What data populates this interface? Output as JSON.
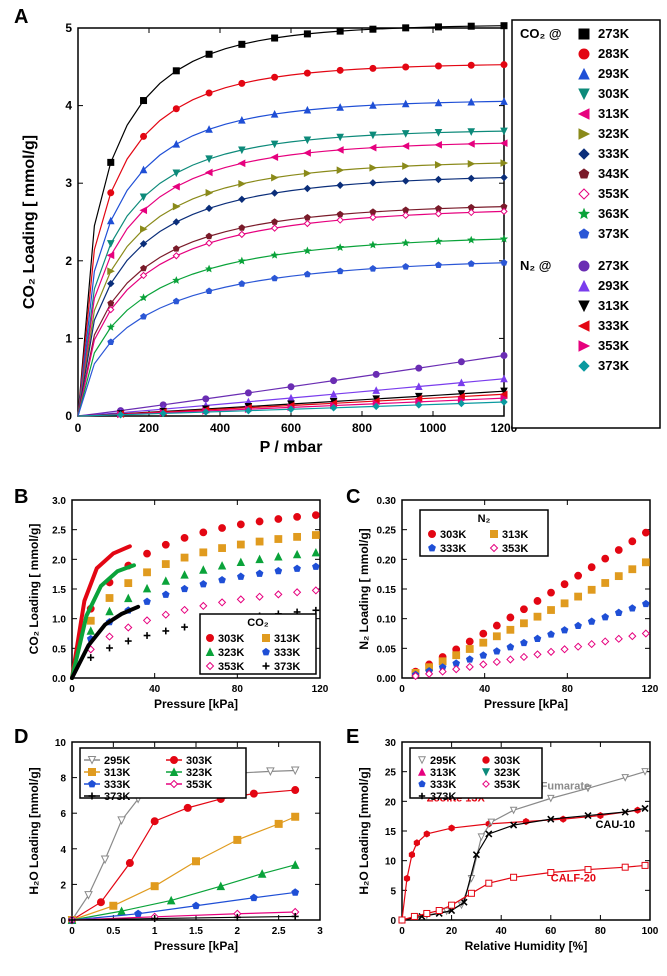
{
  "labels": {
    "A": "A",
    "B": "B",
    "C": "C",
    "D": "D",
    "E": "E",
    "A_x": "P / mbar",
    "A_y": "CO₂ Loading [ mmol/g]",
    "B_x": "Pressure [kPa]",
    "B_y": "CO₂ Loading [ mmol/g]",
    "C_x": "Pressure [kPa]",
    "C_y": "N₂ Loading [ mmol/g]",
    "D_x": "Pressure [kPa]",
    "D_y": "H₂O Loading [mmol/g]",
    "E_x": "Relative Humidity [%]",
    "E_y": "H₂O Loading [mmol/g]",
    "A_leg_co2": "CO₂ @",
    "A_leg_n2": "N₂ @",
    "B_leg": "CO₂",
    "C_leg": "N₂",
    "E_z13x": "Zeolite 13X",
    "E_alf": "Al-Fumarate",
    "E_cau": "CAU-10",
    "E_calf": "CALF-20"
  },
  "colors": {
    "black": "#000000",
    "red": "#e30613",
    "blue": "#1f4fd6",
    "navy": "#0b2e7a",
    "teal": "#0d8a7a",
    "cyan": "#00a9b5",
    "olive": "#8a8a1a",
    "darkolive": "#6b6b14",
    "maroon": "#7a1b2a",
    "magenta": "#e6007e",
    "green": "#0aa33a",
    "royal": "#2b57d6",
    "purple": "#6a2db3",
    "violet": "#7a3ded",
    "darkcyan": "#0a9aa0",
    "orange": "#e09b1f",
    "gray": "#8a8a8a",
    "grid": "#000000",
    "bg": "#ffffff"
  },
  "panelA": {
    "type": "line+markers",
    "xlim": [
      0,
      1200
    ],
    "xticks": [
      0,
      200,
      400,
      600,
      800,
      1000,
      1200
    ],
    "ylim": [
      0,
      5
    ],
    "yticks": [
      0,
      1,
      2,
      3,
      4,
      5
    ],
    "co2_series": [
      {
        "t": "273K",
        "c": "black",
        "m": "sq",
        "hi": 5.05
      },
      {
        "t": "283K",
        "c": "red",
        "m": "ci",
        "hi": 4.55
      },
      {
        "t": "293K",
        "c": "blue",
        "m": "tu",
        "hi": 4.08
      },
      {
        "t": "303K",
        "c": "teal",
        "m": "td",
        "hi": 3.7
      },
      {
        "t": "313K",
        "c": "magenta",
        "m": "tl",
        "hi": 3.55
      },
      {
        "t": "323K",
        "c": "olive",
        "m": "tr",
        "hi": 3.3
      },
      {
        "t": "333K",
        "c": "navy",
        "m": "di",
        "hi": 3.12
      },
      {
        "t": "343K",
        "c": "maroon",
        "m": "pe",
        "hi": 2.75
      },
      {
        "t": "353K",
        "c": "magenta",
        "m": "di",
        "open": true,
        "hi": 2.7
      },
      {
        "t": "363K",
        "c": "green",
        "m": "st",
        "hi": 2.35
      },
      {
        "t": "373K",
        "c": "royal",
        "m": "pe",
        "hi": 2.05
      }
    ],
    "n2_series": [
      {
        "t": "273K",
        "c": "purple",
        "m": "ci",
        "hi": 0.78
      },
      {
        "t": "293K",
        "c": "violet",
        "m": "tu",
        "hi": 0.48
      },
      {
        "t": "313K",
        "c": "black",
        "m": "td",
        "hi": 0.32
      },
      {
        "t": "333K",
        "c": "red",
        "m": "tl",
        "hi": 0.28
      },
      {
        "t": "353K",
        "c": "magenta",
        "m": "tr",
        "hi": 0.23
      },
      {
        "t": "373K",
        "c": "darkcyan",
        "m": "di",
        "hi": 0.18
      }
    ]
  },
  "panelB": {
    "type": "markers",
    "xlim": [
      0,
      120
    ],
    "xticks": [
      0,
      40,
      80,
      120
    ],
    "ylim": [
      0,
      3.0
    ],
    "yticks": [
      0,
      0.5,
      1.0,
      1.5,
      2.0,
      2.5,
      3.0
    ],
    "series": [
      {
        "t": "303K",
        "c": "red",
        "m": "ci",
        "hi": 2.95
      },
      {
        "t": "313K",
        "c": "orange",
        "m": "sq",
        "hi": 2.65
      },
      {
        "t": "323K",
        "c": "green",
        "m": "tu",
        "hi": 2.4
      },
      {
        "t": "333K",
        "c": "blue",
        "m": "pe",
        "hi": 2.22
      },
      {
        "t": "353K",
        "c": "magenta",
        "m": "di",
        "open": true,
        "hi": 1.85
      },
      {
        "t": "373K",
        "c": "black",
        "m": "pl",
        "hi": 1.55
      }
    ],
    "fit_lines": [
      {
        "c": "red",
        "pts": [
          [
            0,
            0
          ],
          [
            6,
            1.3
          ],
          [
            12,
            1.85
          ],
          [
            20,
            2.1
          ],
          [
            28,
            2.22
          ]
        ]
      },
      {
        "c": "green",
        "pts": [
          [
            0,
            0
          ],
          [
            7,
            1.05
          ],
          [
            14,
            1.55
          ],
          [
            22,
            1.8
          ],
          [
            30,
            1.9
          ]
        ]
      },
      {
        "c": "black",
        "pts": [
          [
            0,
            0
          ],
          [
            8,
            0.55
          ],
          [
            16,
            0.9
          ],
          [
            24,
            1.08
          ],
          [
            32,
            1.2
          ]
        ]
      }
    ]
  },
  "panelC": {
    "type": "markers",
    "xlim": [
      0,
      120
    ],
    "xticks": [
      0,
      40,
      80,
      120
    ],
    "ylim": [
      0,
      0.3
    ],
    "yticks": [
      0,
      0.05,
      0.1,
      0.15,
      0.2,
      0.25,
      0.3
    ],
    "series": [
      {
        "t": "303K",
        "c": "red",
        "m": "ci",
        "hi": 0.245
      },
      {
        "t": "313K",
        "c": "orange",
        "m": "sq",
        "hi": 0.195
      },
      {
        "t": "333K",
        "c": "blue",
        "m": "pe",
        "hi": 0.125
      },
      {
        "t": "353K",
        "c": "magenta",
        "m": "di",
        "open": true,
        "hi": 0.075
      }
    ]
  },
  "panelD": {
    "type": "line+markers",
    "xlim": [
      0,
      3.0
    ],
    "xticks": [
      0,
      0.5,
      1.0,
      1.5,
      2.0,
      2.5,
      3.0
    ],
    "ylim": [
      0,
      10
    ],
    "yticks": [
      0,
      2,
      4,
      6,
      8,
      10
    ],
    "series": [
      {
        "t": "295K",
        "c": "gray",
        "m": "td",
        "open": true,
        "pts": [
          [
            0,
            0
          ],
          [
            0.2,
            1.4
          ],
          [
            0.4,
            3.4
          ],
          [
            0.6,
            5.6
          ],
          [
            0.8,
            6.8
          ],
          [
            1.0,
            7.4
          ],
          [
            1.3,
            7.8
          ],
          [
            1.6,
            8.05
          ],
          [
            2.0,
            8.25
          ],
          [
            2.4,
            8.35
          ],
          [
            2.7,
            8.4
          ]
        ]
      },
      {
        "t": "303K",
        "c": "red",
        "m": "ci",
        "pts": [
          [
            0,
            0
          ],
          [
            0.35,
            1.0
          ],
          [
            0.7,
            3.2
          ],
          [
            1.0,
            5.55
          ],
          [
            1.4,
            6.3
          ],
          [
            1.8,
            6.8
          ],
          [
            2.2,
            7.1
          ],
          [
            2.7,
            7.3
          ]
        ]
      },
      {
        "t": "313K",
        "c": "orange",
        "m": "sq",
        "pts": [
          [
            0,
            0
          ],
          [
            0.5,
            0.8
          ],
          [
            1.0,
            1.9
          ],
          [
            1.5,
            3.3
          ],
          [
            2.0,
            4.5
          ],
          [
            2.5,
            5.4
          ],
          [
            2.7,
            5.8
          ]
        ]
      },
      {
        "t": "323K",
        "c": "green",
        "m": "tu",
        "pts": [
          [
            0,
            0
          ],
          [
            0.6,
            0.5
          ],
          [
            1.2,
            1.1
          ],
          [
            1.8,
            1.9
          ],
          [
            2.3,
            2.6
          ],
          [
            2.7,
            3.1
          ]
        ]
      },
      {
        "t": "333K",
        "c": "blue",
        "m": "pe",
        "pts": [
          [
            0,
            0
          ],
          [
            0.8,
            0.35
          ],
          [
            1.5,
            0.8
          ],
          [
            2.2,
            1.25
          ],
          [
            2.7,
            1.55
          ]
        ]
      },
      {
        "t": "353K",
        "c": "magenta",
        "m": "di",
        "open": true,
        "pts": [
          [
            0,
            0
          ],
          [
            1.0,
            0.18
          ],
          [
            2.0,
            0.35
          ],
          [
            2.7,
            0.45
          ]
        ]
      },
      {
        "t": "373K",
        "c": "black",
        "m": "pl",
        "pts": [
          [
            0,
            0
          ],
          [
            1.0,
            0.08
          ],
          [
            2.0,
            0.15
          ],
          [
            2.7,
            0.2
          ]
        ]
      }
    ]
  },
  "panelE": {
    "type": "line+markers",
    "xlim": [
      0,
      100
    ],
    "xticks": [
      0,
      20,
      40,
      60,
      80,
      100
    ],
    "ylim": [
      0,
      30
    ],
    "yticks": [
      0,
      5,
      10,
      15,
      20,
      25,
      30
    ],
    "ref_series": [
      {
        "name": "Zeolite 13X",
        "c": "red",
        "m": "he",
        "pts": [
          [
            0,
            0
          ],
          [
            2,
            7
          ],
          [
            4,
            11
          ],
          [
            6,
            13
          ],
          [
            10,
            14.5
          ],
          [
            20,
            15.5
          ],
          [
            35,
            16.2
          ],
          [
            50,
            16.6
          ],
          [
            65,
            17
          ],
          [
            80,
            17.6
          ],
          [
            95,
            18.5
          ]
        ]
      },
      {
        "name": "Al-Fumarate",
        "c": "gray",
        "m": "td",
        "open": true,
        "pts": [
          [
            0,
            0
          ],
          [
            10,
            0.8
          ],
          [
            18,
            1.5
          ],
          [
            24,
            2.5
          ],
          [
            28,
            7
          ],
          [
            32,
            14
          ],
          [
            36,
            16.5
          ],
          [
            45,
            18.5
          ],
          [
            60,
            20.5
          ],
          [
            75,
            22.2
          ],
          [
            90,
            24
          ],
          [
            98,
            25
          ]
        ]
      },
      {
        "name": "CAU-10",
        "c": "black",
        "m": "x",
        "pts": [
          [
            0,
            0
          ],
          [
            8,
            0.6
          ],
          [
            15,
            1.1
          ],
          [
            20,
            1.6
          ],
          [
            25,
            3
          ],
          [
            30,
            11
          ],
          [
            35,
            14.5
          ],
          [
            45,
            16
          ],
          [
            60,
            17
          ],
          [
            75,
            17.6
          ],
          [
            90,
            18.2
          ],
          [
            98,
            18.8
          ]
        ]
      },
      {
        "name": "CALF-20",
        "c": "red",
        "m": "sq",
        "open": true,
        "pts": [
          [
            0,
            0
          ],
          [
            5,
            0.6
          ],
          [
            10,
            1.1
          ],
          [
            15,
            1.6
          ],
          [
            20,
            2.5
          ],
          [
            28,
            4.5
          ],
          [
            35,
            6.2
          ],
          [
            45,
            7.2
          ],
          [
            60,
            8.0
          ],
          [
            75,
            8.5
          ],
          [
            90,
            8.9
          ],
          [
            98,
            9.2
          ]
        ]
      }
    ],
    "temp_legend": [
      {
        "t": "295K",
        "c": "gray",
        "m": "td",
        "open": true
      },
      {
        "t": "303K",
        "c": "red",
        "m": "ci"
      },
      {
        "t": "313K",
        "c": "magenta",
        "m": "tu"
      },
      {
        "t": "323K",
        "c": "teal",
        "m": "td"
      },
      {
        "t": "333K",
        "c": "blue",
        "m": "pe"
      },
      {
        "t": "353K",
        "c": "magenta",
        "m": "di",
        "open": true
      },
      {
        "t": "373K",
        "c": "black",
        "m": "pl"
      }
    ]
  }
}
